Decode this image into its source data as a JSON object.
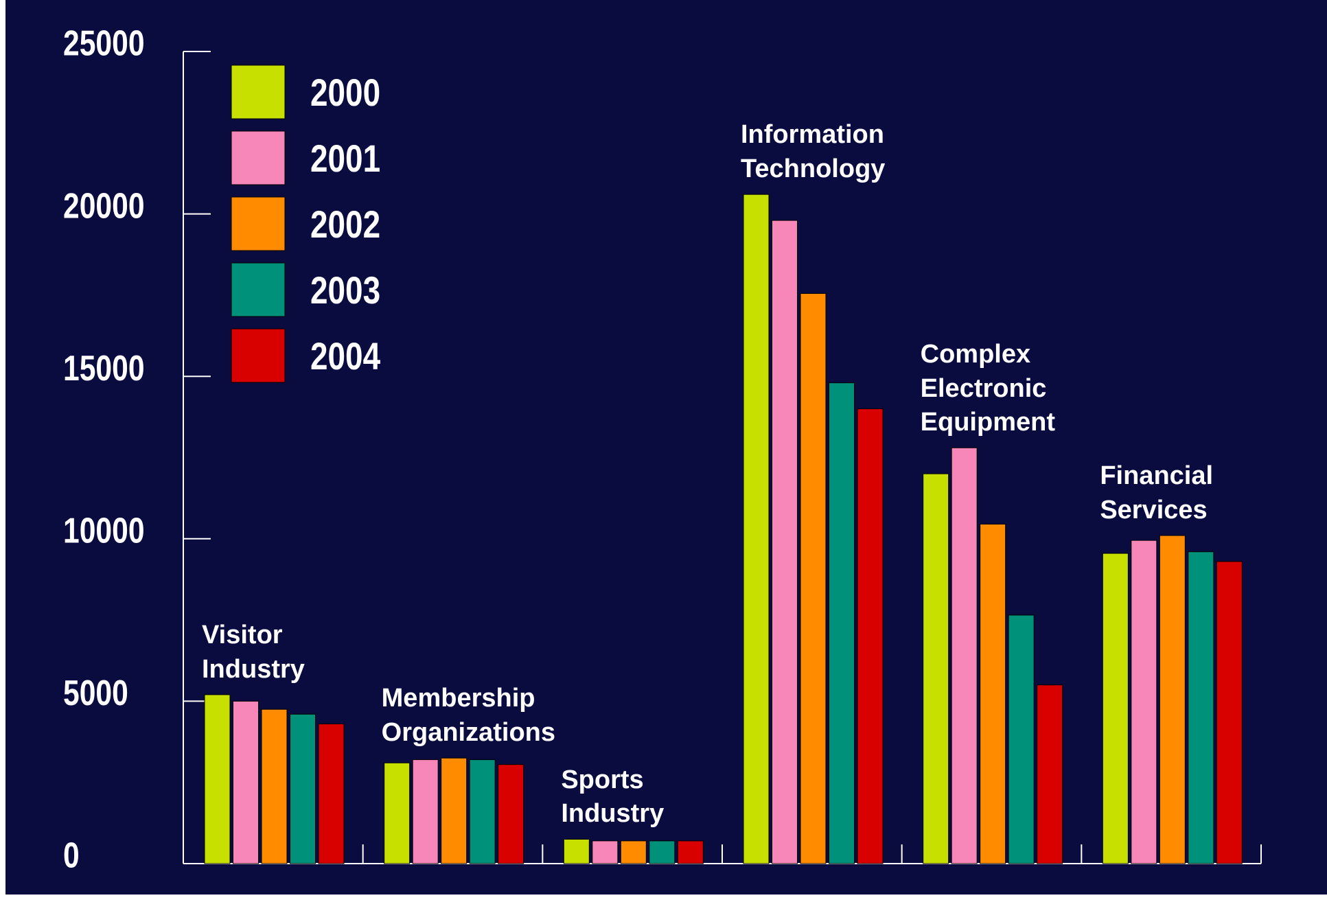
{
  "chart_data": {
    "type": "bar",
    "categories": [
      "Visitor Industry",
      "Membership Organizations",
      "Sports Industry",
      "Information Technology",
      "Complex Electronic Equipment",
      "Financial Services"
    ],
    "series": [
      {
        "name": "2000",
        "color": "#c8e000",
        "values": [
          5200,
          3100,
          750,
          20600,
          12000,
          9550
        ]
      },
      {
        "name": "2001",
        "color": "#f887b9",
        "values": [
          5000,
          3200,
          700,
          19800,
          12800,
          9950
        ]
      },
      {
        "name": "2002",
        "color": "#ff8c00",
        "values": [
          4750,
          3250,
          700,
          17550,
          10450,
          10100
        ]
      },
      {
        "name": "2003",
        "color": "#00917a",
        "values": [
          4600,
          3200,
          700,
          14800,
          7650,
          9600
        ]
      },
      {
        "name": "2004",
        "color": "#d90000",
        "values": [
          4300,
          3050,
          700,
          14000,
          5500,
          9300
        ]
      }
    ],
    "ylim": [
      0,
      25000
    ],
    "yticks": [
      0,
      5000,
      10000,
      15000,
      20000,
      25000
    ],
    "legend": "upper left",
    "grid": false
  }
}
